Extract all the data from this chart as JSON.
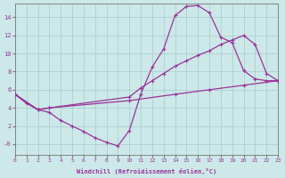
{
  "background_color": "#cce8e8",
  "grid_color": "#a8cccc",
  "line_color": "#993399",
  "xlim": [
    0,
    23
  ],
  "ylim": [
    -1.2,
    15.5
  ],
  "xticks": [
    0,
    1,
    2,
    3,
    4,
    5,
    6,
    7,
    8,
    9,
    10,
    11,
    12,
    13,
    14,
    15,
    16,
    17,
    18,
    19,
    20,
    21,
    22,
    23
  ],
  "yticks": [
    0,
    2,
    4,
    6,
    8,
    10,
    12,
    14
  ],
  "ytick_labels": [
    "-0",
    "2",
    "4",
    "6",
    "8",
    "10",
    "12",
    "14"
  ],
  "xlabel": "Windchill (Refroidissement éolien,°C)",
  "line1_x": [
    0,
    1,
    2,
    3,
    4,
    5,
    6,
    7,
    8,
    9,
    10,
    11,
    12,
    13,
    14,
    15,
    16,
    17,
    18,
    19,
    20,
    21,
    22,
    23
  ],
  "line1_y": [
    5.5,
    4.5,
    3.8,
    3.5,
    2.6,
    2.0,
    1.4,
    0.7,
    0.2,
    -0.2,
    1.5,
    5.5,
    8.5,
    10.5,
    14.2,
    15.2,
    15.3,
    14.5,
    11.8,
    11.2,
    8.1,
    7.2,
    7.0,
    7.0
  ],
  "line2_x": [
    0,
    2,
    3,
    10,
    11,
    12,
    13,
    14,
    15,
    16,
    17,
    18,
    19,
    20,
    21,
    22,
    23
  ],
  "line2_y": [
    5.5,
    3.8,
    4.0,
    5.2,
    6.2,
    7.0,
    7.8,
    8.6,
    9.2,
    9.8,
    10.3,
    11.0,
    11.5,
    12.0,
    11.0,
    7.8,
    7.0
  ],
  "line3_x": [
    0,
    2,
    3,
    10,
    14,
    17,
    20,
    23
  ],
  "line3_y": [
    5.5,
    3.8,
    4.0,
    4.8,
    5.5,
    6.0,
    6.5,
    7.0
  ]
}
